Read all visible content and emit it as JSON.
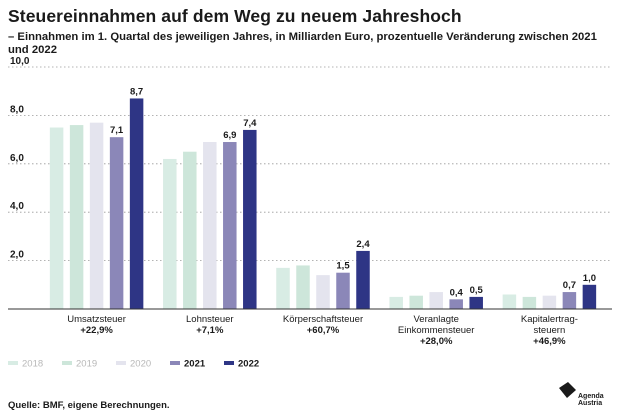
{
  "title": "Steuereinnahmen auf dem Weg zu neuem Jahreshoch",
  "subtitle": "– Einnahmen im 1. Quartal des jeweiligen Jahres, in Milliarden Euro, prozentuelle Veränderung zwischen 2021 und 2022",
  "source": "Quelle: BMF, eigene Berechnungen.",
  "logo": {
    "line1": "Agenda",
    "line2": "Austria"
  },
  "chart_data": {
    "type": "bar",
    "ylim": [
      0,
      10
    ],
    "yticks": [
      "10,0",
      "8,0",
      "6,0",
      "4,0",
      "2,0"
    ],
    "ytick_values": [
      10,
      8,
      6,
      4,
      2
    ],
    "categories": [
      {
        "label_lines": [
          "Umsatzsteuer",
          "+22,9%"
        ]
      },
      {
        "label_lines": [
          "Lohnsteuer",
          "+7,1%"
        ]
      },
      {
        "label_lines": [
          "Körperschaftsteuer",
          "+60,7%"
        ]
      },
      {
        "label_lines": [
          "Veranlagte",
          "Einkommensteuer",
          "+28,0%"
        ]
      },
      {
        "label_lines": [
          "Kapitalertrag-",
          "steuern",
          "+46,9%"
        ]
      }
    ],
    "series": [
      {
        "name": "2018",
        "color": "#d8ece4",
        "values": [
          7.5,
          6.2,
          1.7,
          0.5,
          0.6
        ]
      },
      {
        "name": "2019",
        "color": "#cde6da",
        "values": [
          7.6,
          6.5,
          1.8,
          0.55,
          0.5
        ]
      },
      {
        "name": "2020",
        "color": "#e4e4ee",
        "values": [
          7.7,
          6.9,
          1.4,
          0.7,
          0.55
        ]
      },
      {
        "name": "2021",
        "color": "#8b87b8",
        "values": [
          7.1,
          6.9,
          1.5,
          0.4,
          0.7
        ],
        "labels": [
          "7,1",
          "6,9",
          "1,5",
          "0,4",
          "0,7"
        ]
      },
      {
        "name": "2022",
        "color": "#2e3585",
        "values": [
          8.7,
          7.4,
          2.4,
          0.5,
          1.0
        ],
        "labels": [
          "8,7",
          "7,4",
          "2,4",
          "0,5",
          "1,0"
        ]
      }
    ],
    "legend_position": "bottom-left"
  }
}
